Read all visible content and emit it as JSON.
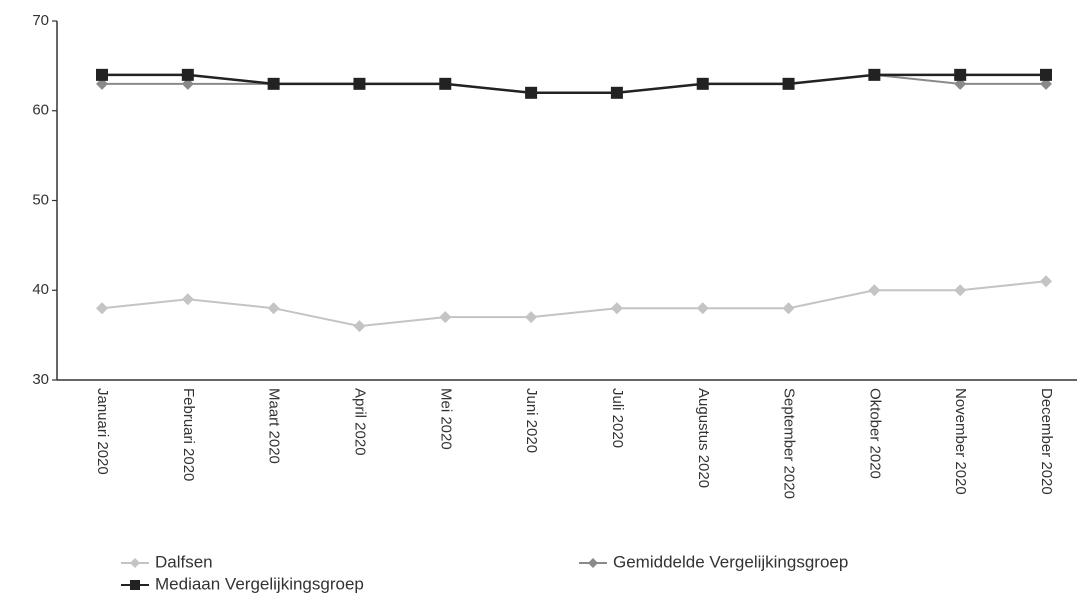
{
  "chart_data": {
    "type": "line",
    "categories": [
      "Januari 2020",
      "Februari 2020",
      "Maart 2020",
      "April 2020",
      "Mei 2020",
      "Juni 2020",
      "Juli 2020",
      "Augustus 2020",
      "September 2020",
      "Oktober 2020",
      "November 2020",
      "December 2020"
    ],
    "series": [
      {
        "name": "Dalfsen",
        "color": "#c4c4c4",
        "marker": "diamond",
        "values": [
          38,
          39,
          38,
          36,
          37,
          37,
          38,
          38,
          38,
          40,
          40,
          41
        ]
      },
      {
        "name": "Gemiddelde Vergelijkingsgroep",
        "color": "#8a8a8a",
        "marker": "diamond",
        "values": [
          63,
          63,
          63,
          63,
          63,
          62,
          62,
          63,
          63,
          64,
          63,
          63
        ]
      },
      {
        "name": "Mediaan Vergelijkingsgroep",
        "color": "#222222",
        "marker": "square",
        "values": [
          64,
          64,
          63,
          63,
          63,
          62,
          62,
          63,
          63,
          64,
          64,
          64
        ]
      }
    ],
    "ylim": [
      30,
      70
    ],
    "yticks": [
      30,
      40,
      50,
      60,
      70
    ],
    "grid": false,
    "legend": "bottom"
  }
}
